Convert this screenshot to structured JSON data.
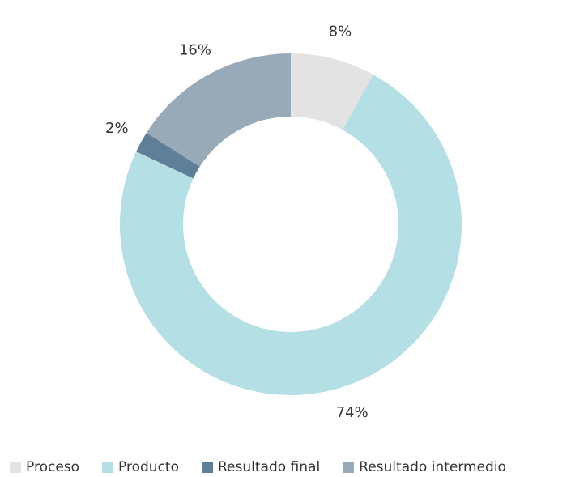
{
  "chart_data": {
    "type": "donut",
    "categories": [
      "Proceso",
      "Producto",
      "Resultado final",
      "Resultado intermedio"
    ],
    "values": [
      8,
      74,
      2,
      16
    ],
    "value_labels": [
      "8%",
      "74%",
      "2%",
      "16%"
    ],
    "colors": [
      "#e3e3e3",
      "#b3dfe5",
      "#5f7f99",
      "#98a9b8"
    ],
    "legend": "bottom"
  }
}
